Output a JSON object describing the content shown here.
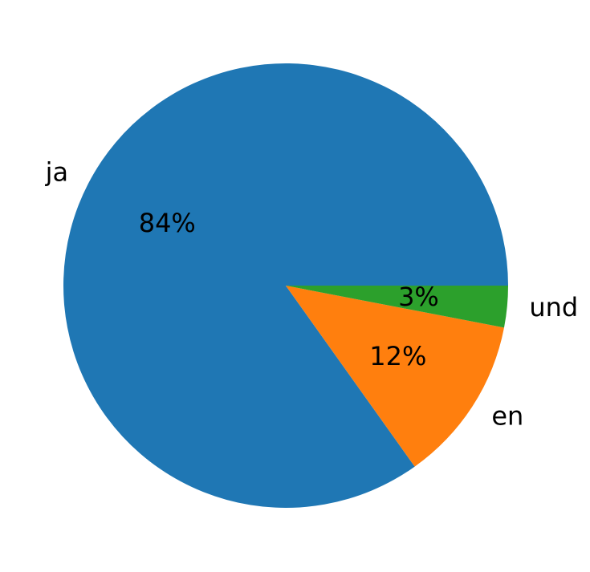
{
  "chart_data": {
    "type": "pie",
    "categories": [
      "ja",
      "en",
      "und"
    ],
    "values": [
      84,
      12,
      3
    ],
    "value_labels": [
      "84%",
      "12%",
      "3%"
    ],
    "colors": [
      "#1f77b4",
      "#ff7f0e",
      "#2ca02c"
    ]
  }
}
